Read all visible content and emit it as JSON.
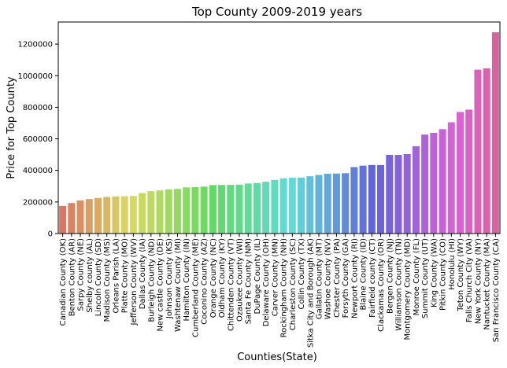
{
  "chart_data": {
    "type": "bar",
    "title": "Top County 2009-2019 years",
    "xlabel": "Counties(State)",
    "ylabel": "Price for Top County",
    "ylim": [
      0,
      1340000
    ],
    "yticks": [
      0,
      200000,
      400000,
      600000,
      800000,
      1000000,
      1200000
    ],
    "ytick_labels": [
      "0",
      "200000",
      "400000",
      "600000",
      "800000",
      "1000000",
      "1200000"
    ],
    "grid": false,
    "legend": "none",
    "palette": "husl",
    "categories": [
      "Canadian County (OK)",
      "Benton County (AR)",
      "Sarpy County (NE)",
      "Shelby county (AL)",
      "Lincoln County (SD)",
      "Madison County (MS)",
      "Orleans Parish (LA)",
      "Platte County (MO)",
      "Jefferson County (WV)",
      "Dallas County (IA)",
      "Burleigh County (ND)",
      "New castle County (DE)",
      "Johnson County (KS)",
      "Washtenaw County (MI)",
      "Hamilton County (IN)",
      "Cumberland County (ME)",
      "Coconino County (AZ)",
      "Orange County (NC)",
      "Oldham County (KY)",
      "Chittenden County (VT)",
      "Ozaukee County (WI)",
      "Santa Fe County (NM)",
      "DuPage County (IL)",
      "Delaware County (OH)",
      "Carver County (MN)",
      "Rockingham County (NH)",
      "Charleston County (SC)",
      "Collin County (TX)",
      "Sitka City and Borough (AK)",
      "Gallatin County (MT)",
      "Washoe County (NV)",
      "Chester County (PA)",
      "Forsyth County (GA)",
      "Newport County (RI)",
      "Blaine County (ID)",
      "Fairfield county (CT)",
      "Clackamas County (OR)",
      "Bergen County (NJ)",
      "Williamson County (TN)",
      "Montgomery County (MD)",
      "Monroe County (FL)",
      "Summit County (UT)",
      "King County (WA)",
      "Pitkin County (CO)",
      "Honolulu (HI)",
      "Teton County (WY)",
      "Falls Church City (VA)",
      "New York County (NY)",
      "Nantucket County (MA)",
      "San Francisco County (CA)"
    ],
    "values": [
      175000,
      193000,
      210000,
      218000,
      225000,
      232000,
      235000,
      236000,
      238000,
      257000,
      268000,
      273000,
      280000,
      283000,
      292000,
      294000,
      297000,
      307000,
      308000,
      308000,
      310000,
      317000,
      320000,
      328000,
      340000,
      350000,
      354000,
      354000,
      363000,
      371000,
      379000,
      380000,
      382000,
      421000,
      430000,
      434000,
      434000,
      498000,
      498000,
      503000,
      553000,
      627000,
      638000,
      661000,
      705000,
      770000,
      785000,
      1038000,
      1047000,
      1275000
    ]
  }
}
